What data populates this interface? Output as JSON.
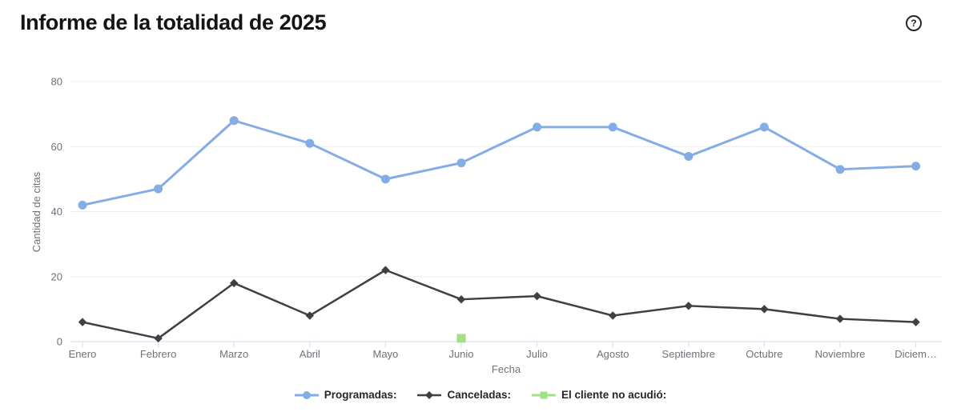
{
  "header": {
    "title": "Informe de la totalidad de 2025",
    "help_icon": "?"
  },
  "chart_data": {
    "type": "line",
    "title": "Informe de la totalidad de 2025",
    "xlabel": "Fecha",
    "ylabel": "Cantidad de citas",
    "ylim": [
      0,
      80
    ],
    "yticks": [
      0,
      20,
      40,
      60,
      80
    ],
    "grid": true,
    "legend_position": "bottom",
    "categories": [
      "Enero",
      "Febrero",
      "Marzo",
      "Abril",
      "Mayo",
      "Junio",
      "Julio",
      "Agosto",
      "Septiembre",
      "Octubre",
      "Noviembre",
      "Diciem…"
    ],
    "series": [
      {
        "name": "Programadas:",
        "color": "#84ade6",
        "marker": "circle",
        "values": [
          42,
          47,
          68,
          61,
          50,
          55,
          66,
          66,
          57,
          66,
          53,
          54
        ]
      },
      {
        "name": "Canceladas:",
        "color": "#3f3f46",
        "marker": "diamond",
        "values": [
          6,
          1,
          18,
          8,
          22,
          13,
          14,
          8,
          11,
          10,
          7,
          6
        ]
      },
      {
        "name": "El cliente no acudió:",
        "color": "#a1e283",
        "marker": "square",
        "values": [
          null,
          null,
          null,
          null,
          null,
          1,
          null,
          null,
          null,
          null,
          null,
          null
        ]
      }
    ]
  },
  "colors": {
    "background": "#ffffff",
    "gridline": "#ededf0",
    "axis_line": "#dbe2f3",
    "tick_label": "#71717a",
    "title": "#141417",
    "legend_text": "#26262b"
  }
}
